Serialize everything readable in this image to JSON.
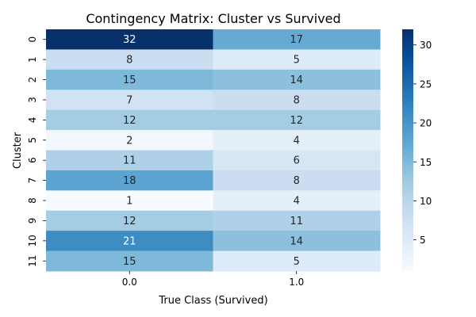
{
  "chart_data": {
    "type": "heatmap",
    "title": "Contingency Matrix: Cluster vs Survived",
    "xlabel": "True Class (Survived)",
    "ylabel": "Cluster",
    "x_categories": [
      "0.0",
      "1.0"
    ],
    "y_categories": [
      "0",
      "1",
      "2",
      "3",
      "4",
      "5",
      "6",
      "7",
      "8",
      "9",
      "10",
      "11"
    ],
    "values": [
      [
        32,
        17
      ],
      [
        8,
        5
      ],
      [
        15,
        14
      ],
      [
        7,
        8
      ],
      [
        12,
        12
      ],
      [
        2,
        4
      ],
      [
        11,
        6
      ],
      [
        18,
        8
      ],
      [
        1,
        4
      ],
      [
        12,
        11
      ],
      [
        21,
        14
      ],
      [
        15,
        5
      ]
    ],
    "colormap": "Blues",
    "colorbar": {
      "range": [
        1,
        32
      ],
      "ticks": [
        "5",
        "10",
        "15",
        "20",
        "25",
        "30"
      ]
    },
    "cell_annotations": true
  }
}
